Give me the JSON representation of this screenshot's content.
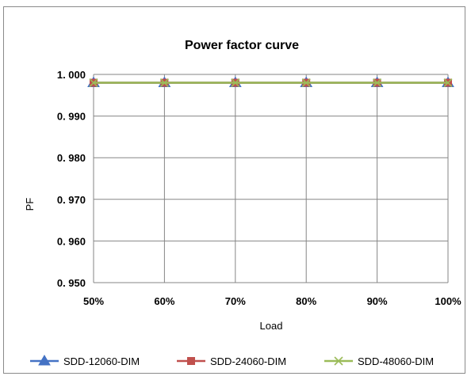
{
  "chart_data": {
    "type": "line",
    "title": "Power factor curve",
    "xlabel": "Load",
    "ylabel": "PF",
    "categories": [
      "50%",
      "60%",
      "70%",
      "80%",
      "90%",
      "100%"
    ],
    "ylim": [
      0.95,
      1.0
    ],
    "yticks": [
      0.95,
      0.96,
      0.97,
      0.98,
      0.99,
      1.0
    ],
    "ytick_labels": [
      "0. 950",
      "0. 960",
      "0. 970",
      "0. 980",
      "0. 990",
      "1. 000"
    ],
    "grid": true,
    "legend_position": "bottom",
    "series": [
      {
        "name": "SDD-12060-DIM",
        "values": [
          0.998,
          0.998,
          0.998,
          0.998,
          0.998,
          0.998
        ],
        "color": "#4472C4",
        "marker": "triangle"
      },
      {
        "name": "SDD-24060-DIM",
        "values": [
          0.998,
          0.998,
          0.998,
          0.998,
          0.998,
          0.998
        ],
        "color": "#C0504D",
        "marker": "square"
      },
      {
        "name": "SDD-48060-DIM",
        "values": [
          0.998,
          0.998,
          0.998,
          0.998,
          0.998,
          0.998
        ],
        "color": "#9BBB59",
        "marker": "x"
      }
    ]
  }
}
